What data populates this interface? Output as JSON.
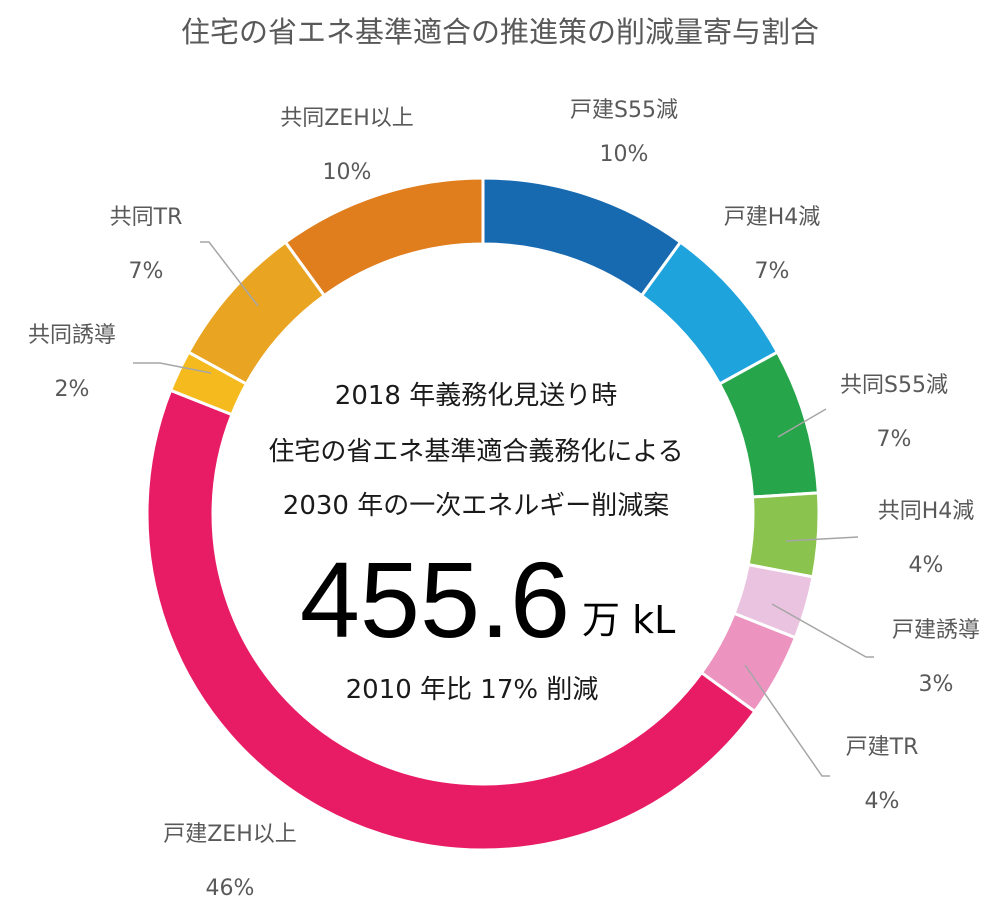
{
  "chart_data": {
    "type": "pie",
    "title": "住宅の省エネ基準適合の推進策の削減量寄与割合",
    "categories": [
      "戸建S55減",
      "戸建H4減",
      "共同S55減",
      "共同H4減",
      "戸建誘導",
      "戸建TR",
      "戸建ZEH以上",
      "共同誘導",
      "共同TR",
      "共同ZEH以上"
    ],
    "values": [
      10,
      7,
      7,
      4,
      3,
      4,
      46,
      2,
      7,
      10
    ],
    "value_labels": [
      "10%",
      "7%",
      "7%",
      "4%",
      "3%",
      "4%",
      "46%",
      "2%",
      "7%",
      "10%"
    ],
    "colors": [
      "#1769b0",
      "#1ea3dd",
      "#27a54a",
      "#8bc34f",
      "#eac3e0",
      "#ec93bf",
      "#e81c64",
      "#f5bb1e",
      "#e9a521",
      "#e07e1d"
    ],
    "hole": "donut",
    "legend": "none"
  },
  "center": {
    "line1": "2018 年義務化見送り時",
    "line2": "住宅の省エネ基準適合義務化による",
    "line3": "2030 年の一次エネルギー削減案",
    "big_value": "455.6",
    "unit": "万 kL",
    "sub": "2010 年比 17% 削減"
  }
}
